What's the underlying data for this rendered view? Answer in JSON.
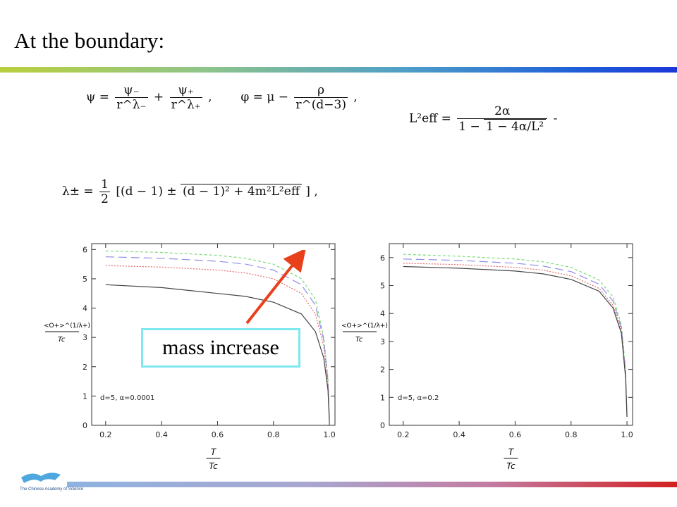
{
  "slide": {
    "title": "At the boundary:",
    "logo_text": "The Chinese Academy of Science",
    "callout": "mass increase"
  },
  "equations": {
    "eq1": {
      "psi": "ψ =",
      "psi_minus": "ψ₋",
      "psi_plus": "ψ₊",
      "r_lm": "r^λ₋",
      "r_lp": "r^λ₊",
      "plus": "+",
      "comma": ",",
      "phi": "φ = μ −",
      "rho": "ρ",
      "r_d3": "r^(d−3)",
      "comma2": ","
    },
    "eq2": {
      "lhs": "L²eff =",
      "num": "2α",
      "den_pre": "1 −",
      "den_sqrt": "1 − 4α/L²",
      "tail": "-"
    },
    "eq3": {
      "lhs": "λ± =",
      "half_n": "1",
      "half_d": "2",
      "body": "[(d − 1) ±",
      "sqrt": "(d − 1)² + 4m²L²eff",
      "close": "] ,"
    }
  },
  "chart_data": [
    {
      "type": "line",
      "annotation": "d=5, α=0.0001",
      "xlabel_num": "T",
      "xlabel_den": "Tc",
      "ylabel_num": "<O+>^(1/λ+)",
      "ylabel_den": "Tc",
      "xlim": [
        0.15,
        1.02
      ],
      "ylim": [
        0,
        6.2
      ],
      "xticks": [
        "0.2",
        "0.4",
        "0.6",
        "0.8",
        "1.0"
      ],
      "yticks": [
        "0",
        "1",
        "2",
        "3",
        "4",
        "5",
        "6"
      ],
      "series": [
        {
          "color": "#7cdc7c",
          "dash": "4,3",
          "y0": 5.95,
          "ys": [
            [
              0.2,
              5.95
            ],
            [
              0.4,
              5.9
            ],
            [
              0.6,
              5.8
            ],
            [
              0.7,
              5.7
            ],
            [
              0.8,
              5.5
            ],
            [
              0.9,
              5.0
            ],
            [
              0.95,
              4.3
            ],
            [
              0.98,
              3.0
            ],
            [
              0.995,
              1.6
            ],
            [
              1.0,
              0.2
            ]
          ]
        },
        {
          "color": "#8e8ee8",
          "dash": "12,6",
          "y0": 5.75,
          "ys": [
            [
              0.2,
              5.75
            ],
            [
              0.4,
              5.7
            ],
            [
              0.6,
              5.6
            ],
            [
              0.7,
              5.5
            ],
            [
              0.8,
              5.3
            ],
            [
              0.9,
              4.8
            ],
            [
              0.95,
              4.1
            ],
            [
              0.98,
              2.9
            ],
            [
              0.995,
              1.5
            ],
            [
              1.0,
              0.2
            ]
          ]
        },
        {
          "color": "#e86a6a",
          "dash": "2,2",
          "y0": 5.45,
          "ys": [
            [
              0.2,
              5.45
            ],
            [
              0.4,
              5.4
            ],
            [
              0.6,
              5.3
            ],
            [
              0.7,
              5.2
            ],
            [
              0.8,
              5.0
            ],
            [
              0.9,
              4.5
            ],
            [
              0.95,
              3.8
            ],
            [
              0.98,
              2.7
            ],
            [
              0.995,
              1.4
            ],
            [
              1.0,
              0.2
            ]
          ]
        },
        {
          "color": "#444444",
          "dash": "",
          "y0": 4.8,
          "ys": [
            [
              0.2,
              4.8
            ],
            [
              0.4,
              4.7
            ],
            [
              0.6,
              4.5
            ],
            [
              0.7,
              4.4
            ],
            [
              0.8,
              4.2
            ],
            [
              0.9,
              3.8
            ],
            [
              0.95,
              3.2
            ],
            [
              0.98,
              2.3
            ],
            [
              0.995,
              1.2
            ],
            [
              1.0,
              0.1
            ]
          ]
        }
      ]
    },
    {
      "type": "line",
      "annotation": "d=5, α=0.2",
      "xlabel_num": "T",
      "xlabel_den": "Tc",
      "ylabel_num": "<O+>^(1/λ+)",
      "ylabel_den": "Tc",
      "xlim": [
        0.15,
        1.02
      ],
      "ylim": [
        0,
        6.5
      ],
      "xticks": [
        "0.2",
        "0.4",
        "0.6",
        "0.8",
        "1.0"
      ],
      "yticks": [
        "0",
        "1",
        "2",
        "3",
        "4",
        "5",
        "6"
      ],
      "series": [
        {
          "color": "#7cdc7c",
          "dash": "4,3",
          "ys": [
            [
              0.2,
              6.12
            ],
            [
              0.4,
              6.05
            ],
            [
              0.6,
              5.95
            ],
            [
              0.7,
              5.85
            ],
            [
              0.8,
              5.65
            ],
            [
              0.9,
              5.2
            ],
            [
              0.95,
              4.6
            ],
            [
              0.98,
              3.6
            ],
            [
              0.995,
              2.0
            ],
            [
              1.0,
              0.3
            ]
          ]
        },
        {
          "color": "#8e8ee8",
          "dash": "12,6",
          "ys": [
            [
              0.2,
              5.95
            ],
            [
              0.4,
              5.9
            ],
            [
              0.6,
              5.8
            ],
            [
              0.7,
              5.7
            ],
            [
              0.8,
              5.5
            ],
            [
              0.9,
              5.05
            ],
            [
              0.95,
              4.45
            ],
            [
              0.98,
              3.5
            ],
            [
              0.995,
              1.9
            ],
            [
              1.0,
              0.3
            ]
          ]
        },
        {
          "color": "#e86a6a",
          "dash": "2,2",
          "ys": [
            [
              0.2,
              5.8
            ],
            [
              0.4,
              5.75
            ],
            [
              0.6,
              5.65
            ],
            [
              0.7,
              5.55
            ],
            [
              0.8,
              5.35
            ],
            [
              0.9,
              4.9
            ],
            [
              0.95,
              4.3
            ],
            [
              0.98,
              3.4
            ],
            [
              0.995,
              1.8
            ],
            [
              1.0,
              0.3
            ]
          ]
        },
        {
          "color": "#444444",
          "dash": "",
          "ys": [
            [
              0.2,
              5.68
            ],
            [
              0.4,
              5.62
            ],
            [
              0.6,
              5.52
            ],
            [
              0.7,
              5.42
            ],
            [
              0.8,
              5.22
            ],
            [
              0.9,
              4.8
            ],
            [
              0.95,
              4.2
            ],
            [
              0.98,
              3.3
            ],
            [
              0.995,
              1.7
            ],
            [
              1.0,
              0.3
            ]
          ]
        }
      ]
    }
  ]
}
